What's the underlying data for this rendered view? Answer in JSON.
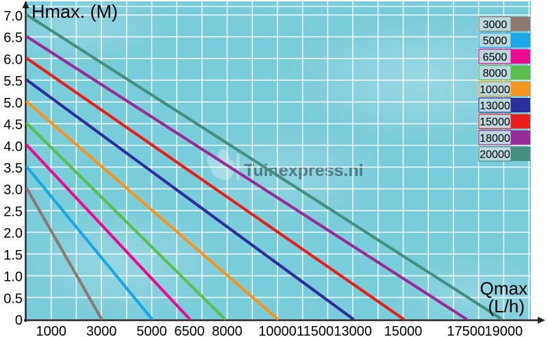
{
  "titles": {
    "y_axis": "Hmax. (M)",
    "x_axis_line1": "Qmax",
    "x_axis_line2": "(L/h)"
  },
  "watermark": {
    "text": "Tuinexpress.nl",
    "logo": "flower-icon"
  },
  "colors": {
    "page_bg": "#ffffff",
    "plot_bg": "#79ccd9",
    "grid": "#ffffff",
    "axis": "#222222",
    "text": "#000000",
    "legend_cell_bg": "#b9d7dd"
  },
  "chart_data": {
    "type": "line",
    "title": "",
    "xlabel": "Qmax (L/h)",
    "ylabel": "Hmax. (M)",
    "x_range": [
      0,
      20080
    ],
    "y_range": [
      0,
      7.22
    ],
    "x_grid_step": 1000,
    "y_grid_step": 0.5,
    "grid": true,
    "legend_position": "top-right",
    "x_ticks": [
      1000,
      3000,
      5000,
      6500,
      8000,
      10000,
      11500,
      13000,
      15000,
      17500,
      19000
    ],
    "y_ticks": [
      {
        "v": 7.0,
        "label": "7.0"
      },
      {
        "v": 6.5,
        "label": "6.5"
      },
      {
        "v": 6.0,
        "label": "6.0"
      },
      {
        "v": 5.5,
        "label": "5.5"
      },
      {
        "v": 5.0,
        "label": "5.0"
      },
      {
        "v": 4.5,
        "label": "4.5"
      },
      {
        "v": 4.0,
        "label": "4.0"
      },
      {
        "v": 3.5,
        "label": "3.5"
      },
      {
        "v": 3.0,
        "label": "3.0"
      },
      {
        "v": 2.5,
        "label": "2.5"
      },
      {
        "v": 2.0,
        "label": "2.0"
      },
      {
        "v": 1.5,
        "label": "1.5"
      },
      {
        "v": 1.0,
        "label": "1.0"
      },
      {
        "v": 0.5,
        "label": "0.5"
      },
      {
        "v": 0,
        "label": "0"
      }
    ],
    "series": [
      {
        "name": "3000",
        "color": "#8c7a70",
        "points": [
          [
            0,
            3.0
          ],
          [
            3000,
            0
          ]
        ]
      },
      {
        "name": "5000",
        "color": "#1ba7e5",
        "points": [
          [
            0,
            3.5
          ],
          [
            5000,
            0
          ]
        ]
      },
      {
        "name": "6500",
        "color": "#ee0a90",
        "points": [
          [
            0,
            4.0
          ],
          [
            6500,
            0
          ]
        ]
      },
      {
        "name": "8000",
        "color": "#5abf4e",
        "points": [
          [
            0,
            4.5
          ],
          [
            7900,
            0
          ]
        ]
      },
      {
        "name": "10000",
        "color": "#f79420",
        "points": [
          [
            0,
            5.0
          ],
          [
            10000,
            0
          ]
        ]
      },
      {
        "name": "13000",
        "color": "#2a2f9c",
        "points": [
          [
            0,
            5.5
          ],
          [
            13000,
            0
          ]
        ]
      },
      {
        "name": "15000",
        "color": "#e8201d",
        "points": [
          [
            0,
            6.0
          ],
          [
            15000,
            0
          ]
        ]
      },
      {
        "name": "18000",
        "color": "#962d99",
        "points": [
          [
            0,
            6.5
          ],
          [
            17500,
            0
          ]
        ]
      },
      {
        "name": "20000",
        "color": "#43907e",
        "points": [
          [
            0,
            7.0
          ],
          [
            18900,
            0
          ]
        ]
      }
    ]
  }
}
